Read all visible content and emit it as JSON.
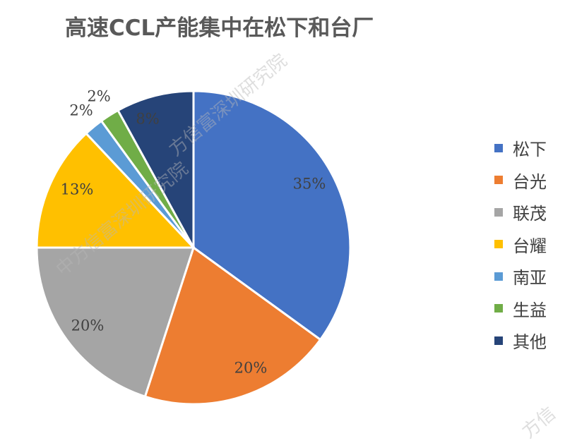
{
  "chart_data": {
    "type": "pie",
    "title": "高速CCL产能集中在松下和台厂",
    "categories": [
      "松下",
      "台光",
      "联茂",
      "台耀",
      "南亚",
      "生益",
      "其他"
    ],
    "values": [
      35,
      20,
      20,
      13,
      2,
      2,
      8
    ],
    "labels": [
      "35%",
      "20%",
      "20%",
      "13%",
      "2%",
      "2%",
      "8%"
    ],
    "colors": [
      "#4472C4",
      "#ED7D31",
      "#A5A5A5",
      "#FFC000",
      "#5B9BD5",
      "#70AD47",
      "#264478"
    ],
    "legend_position": "right"
  },
  "watermark": {
    "text_a": "中方信富深圳研究院",
    "text_b": "方信富深圳研究院",
    "text_c": "方信"
  }
}
